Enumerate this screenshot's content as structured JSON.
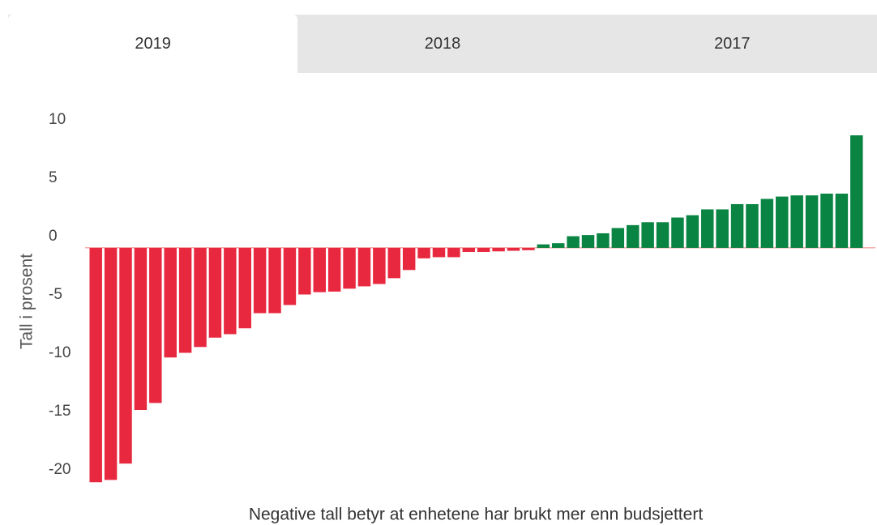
{
  "tabs": [
    "2019",
    "2018",
    "2017"
  ],
  "active_tab": 0,
  "chart_data": {
    "type": "bar",
    "y_label": "Tall i prosent",
    "x_label": "Negative tall betyr at enhetene har brukt mer enn budsjettert",
    "categories": [
      null,
      null,
      null,
      null,
      null,
      null,
      null,
      null,
      null,
      null,
      null,
      null,
      null,
      null,
      null,
      null,
      null,
      null,
      null,
      null,
      null,
      null,
      null,
      null,
      null,
      null,
      null,
      null,
      null,
      null,
      null,
      null,
      null,
      null,
      null,
      null,
      null,
      null,
      null,
      null,
      null,
      null,
      null,
      null,
      null,
      null,
      null,
      null,
      null,
      null,
      null,
      null
    ],
    "values": [
      -20.1,
      -19.9,
      -18.5,
      -13.9,
      -13.3,
      -9.4,
      -9.0,
      -8.5,
      -7.7,
      -7.4,
      -6.9,
      -5.6,
      -5.6,
      -4.9,
      -4.0,
      -3.8,
      -3.75,
      -3.5,
      -3.3,
      -3.1,
      -2.6,
      -1.9,
      -0.9,
      -0.8,
      -0.8,
      -0.35,
      -0.35,
      -0.3,
      -0.25,
      -0.2,
      0.3,
      0.4,
      1.0,
      1.1,
      1.25,
      1.7,
      1.95,
      2.2,
      2.2,
      2.6,
      2.8,
      3.3,
      3.3,
      3.75,
      3.75,
      4.2,
      4.4,
      4.5,
      4.5,
      4.65,
      4.65,
      9.65
    ],
    "color": "#0a8443",
    "negative_color": "#e8283f",
    "zero_line_color": "#f08080",
    "ylim": [
      -20.5,
      10
    ],
    "yticks": [
      -20,
      -15,
      -10,
      -5,
      0,
      5,
      10
    ],
    "grid": false
  }
}
